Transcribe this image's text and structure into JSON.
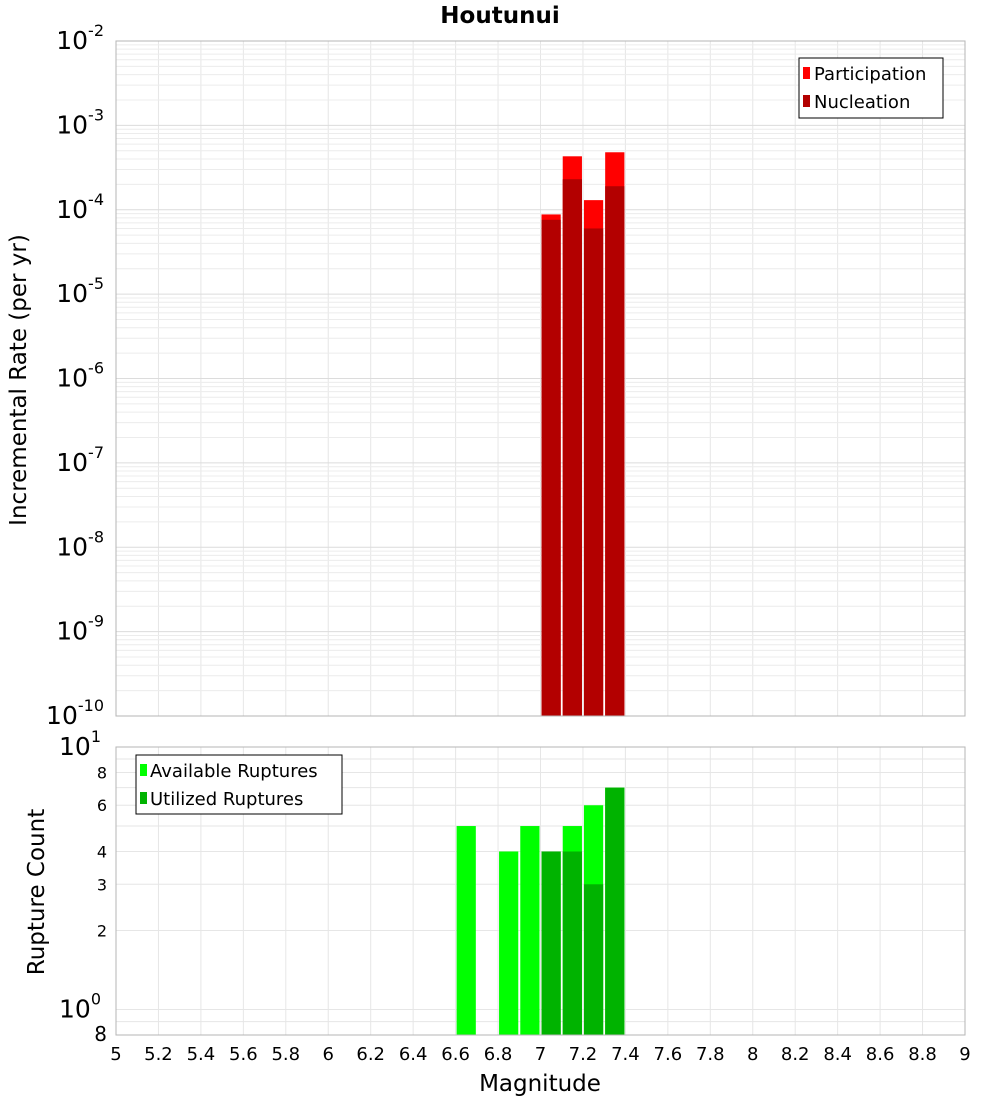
{
  "chart_data": [
    {
      "type": "bar",
      "title": "Houtunui",
      "ylabel": "Incremental Rate (per yr)",
      "yscale": "log",
      "ylim": [
        1e-10,
        0.01
      ],
      "xlim": [
        5,
        9
      ],
      "bin_width": 0.1,
      "grid": true,
      "legend_position": "top-right",
      "y_tick_exponents": [
        "-10",
        "-9",
        "-8",
        "-7",
        "-6",
        "-5",
        "-4",
        "-3",
        "-2"
      ],
      "y_tick_base": "10",
      "series": [
        {
          "name": "Participation",
          "color": "#ff0000",
          "x": [
            7.05,
            7.15,
            7.25,
            7.35
          ],
          "values": [
            8.8e-05,
            0.00043,
            0.00013,
            0.00048
          ]
        },
        {
          "name": "Nucleation",
          "color": "#b30000",
          "x": [
            7.05,
            7.15,
            7.25,
            7.35
          ],
          "values": [
            7.6e-05,
            0.00023,
            6e-05,
            0.00019
          ]
        }
      ]
    },
    {
      "type": "bar",
      "xlabel": "Magnitude",
      "ylabel": "Rupture Count",
      "yscale": "log",
      "ylim": [
        0.8,
        10
      ],
      "xlim": [
        5,
        9
      ],
      "bin_width": 0.1,
      "grid": true,
      "legend_position": "top-left",
      "y_minor_labels": [
        "8",
        "6",
        "4",
        "3",
        "2",
        "8"
      ],
      "y_major_labels": [
        {
          "base": "10",
          "exp": "1"
        },
        {
          "base": "10",
          "exp": "0"
        }
      ],
      "x_ticks": [
        "5",
        "5.2",
        "5.4",
        "5.6",
        "5.8",
        "6",
        "6.2",
        "6.4",
        "6.6",
        "6.8",
        "7",
        "7.2",
        "7.4",
        "7.6",
        "7.8",
        "8",
        "8.2",
        "8.4",
        "8.6",
        "8.8",
        "9"
      ],
      "series": [
        {
          "name": "Available Ruptures",
          "color": "#00ff00",
          "x": [
            6.65,
            6.85,
            6.95,
            7.05,
            7.15,
            7.25,
            7.35
          ],
          "values": [
            5,
            4,
            5,
            4,
            5,
            6,
            7
          ]
        },
        {
          "name": "Utilized Ruptures",
          "color": "#00b300",
          "x": [
            7.05,
            7.15,
            7.25,
            7.35
          ],
          "values": [
            4,
            4,
            3,
            7
          ]
        }
      ]
    }
  ]
}
